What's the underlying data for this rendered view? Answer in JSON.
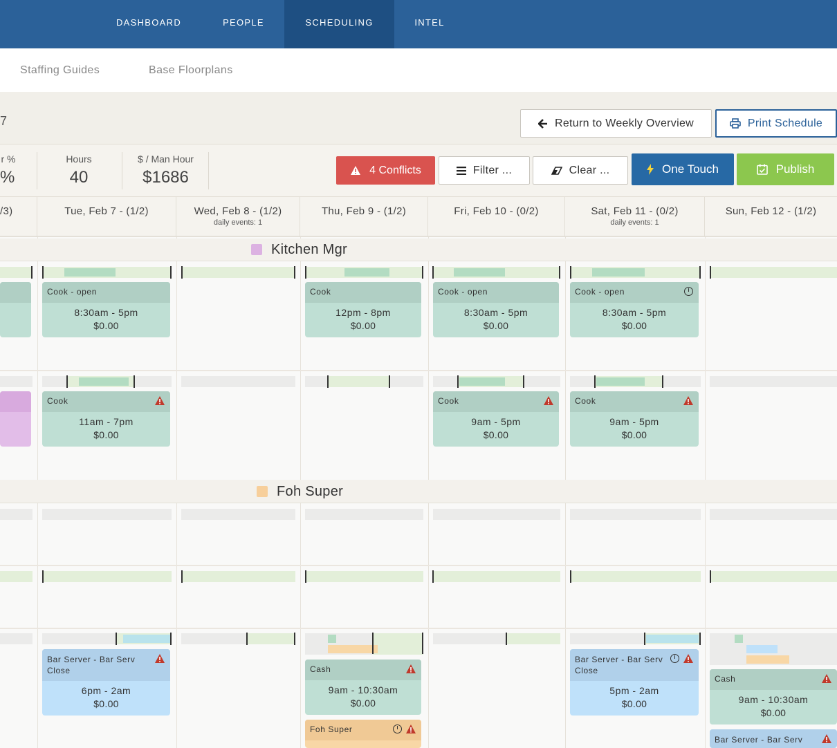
{
  "nav": {
    "items": [
      "DASHBOARD",
      "PEOPLE",
      "SCHEDULING",
      "INTEL"
    ],
    "active": "SCHEDULING"
  },
  "subnav": {
    "items": [
      "Staffing Guides",
      "Base Floorplans"
    ]
  },
  "toolbar": {
    "title_fragment": "7",
    "return_label": "Return to Weekly Overview",
    "print_label": "Print Schedule"
  },
  "stats": {
    "partial_label": "r %",
    "partial_value": "%",
    "hours_label": "Hours",
    "hours_value": "40",
    "manhour_label": "$ / Man Hour",
    "manhour_value": "$1686"
  },
  "actions": {
    "conflicts": "4 Conflicts",
    "filter": "Filter ...",
    "clear": "Clear ...",
    "one_touch": "One Touch",
    "publish": "Publish"
  },
  "days": [
    {
      "label": "/3)",
      "events": ""
    },
    {
      "label": "Tue, Feb 7 - (1/2)",
      "events": ""
    },
    {
      "label": "Wed, Feb 8 - (1/2)",
      "events": "daily events: 1"
    },
    {
      "label": "Thu, Feb 9 - (1/2)",
      "events": ""
    },
    {
      "label": "Fri, Feb 10 - (0/2)",
      "events": ""
    },
    {
      "label": "Sat, Feb 11 - (0/2)",
      "events": "daily events: 1"
    },
    {
      "label": "Sun, Feb 12 - (1/2)",
      "events": ""
    }
  ],
  "sections": [
    {
      "title": "Kitchen Mgr",
      "color": "#dcb2e2"
    },
    {
      "title": "Foh Super",
      "color": "#f7cf9b"
    }
  ],
  "shifts": {
    "r1_tue": {
      "role": "Cook - open",
      "time": "8:30am - 5pm",
      "pay": "$0.00"
    },
    "r1_thu": {
      "role": "Cook",
      "time": "12pm - 8pm",
      "pay": "$0.00"
    },
    "r1_fri": {
      "role": "Cook - open",
      "time": "8:30am - 5pm",
      "pay": "$0.00"
    },
    "r1_sat": {
      "role": "Cook - open",
      "time": "8:30am - 5pm",
      "pay": "$0.00"
    },
    "r2_tue": {
      "role": "Cook",
      "time": "11am - 7pm",
      "pay": "$0.00"
    },
    "r2_fri": {
      "role": "Cook",
      "time": "9am - 5pm",
      "pay": "$0.00"
    },
    "r2_sat": {
      "role": "Cook",
      "time": "9am - 5pm",
      "pay": "$0.00"
    },
    "r5_tue": {
      "role": "Bar Server - Bar Serv Close",
      "time": "6pm - 2am",
      "pay": "$0.00"
    },
    "r5_thu": {
      "role": "Cash",
      "time": "9am - 10:30am",
      "pay": "$0.00"
    },
    "r5_thu2": {
      "role": "Foh Super"
    },
    "r5_sat": {
      "role": "Bar Server - Bar Serv Close",
      "time": "5pm - 2am",
      "pay": "$0.00"
    },
    "r5_sun": {
      "role": "Cash",
      "time": "9am - 10:30am",
      "pay": "$0.00"
    },
    "r5_sun2": {
      "role": "Bar Server - Bar Serv"
    }
  },
  "colors": {
    "nav": "#2b6199",
    "nav_active": "#1e4f82",
    "conflict": "#d9534f",
    "one_touch": "#2769a5",
    "publish": "#8cc74e",
    "shift_green": "#bfdfd4",
    "shift_blue": "#bfe1fa",
    "shift_orange": "#f8d7a6"
  },
  "icons": [
    "arrow-left-icon",
    "printer-icon",
    "warning-icon",
    "menu-icon",
    "eraser-icon",
    "lightning-icon",
    "calendar-check-icon",
    "clock-icon"
  ]
}
